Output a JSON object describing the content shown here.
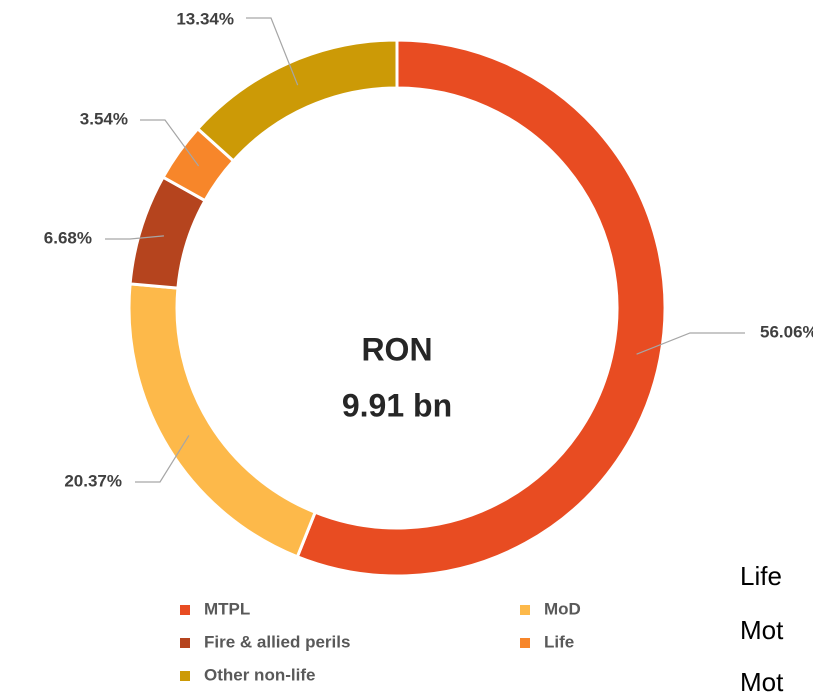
{
  "chart_data": {
    "type": "donut",
    "categories": [
      "MTPL",
      "MoD",
      "Fire & allied perils",
      "Life",
      "Other non-life"
    ],
    "values": [
      56.06,
      20.37,
      6.68,
      3.54,
      13.34
    ],
    "value_labels": [
      "56.06%",
      "20.37%",
      "6.68%",
      "3.54%",
      "13.34%"
    ],
    "colors": [
      "#e84c22",
      "#fdb94a",
      "#b5441e",
      "#f7862a",
      "#cc9a06"
    ],
    "center_text": [
      "RON",
      "9.91 bn"
    ],
    "legend": "bottom"
  },
  "side_text": [
    "Life",
    "Mot",
    "Mot"
  ]
}
